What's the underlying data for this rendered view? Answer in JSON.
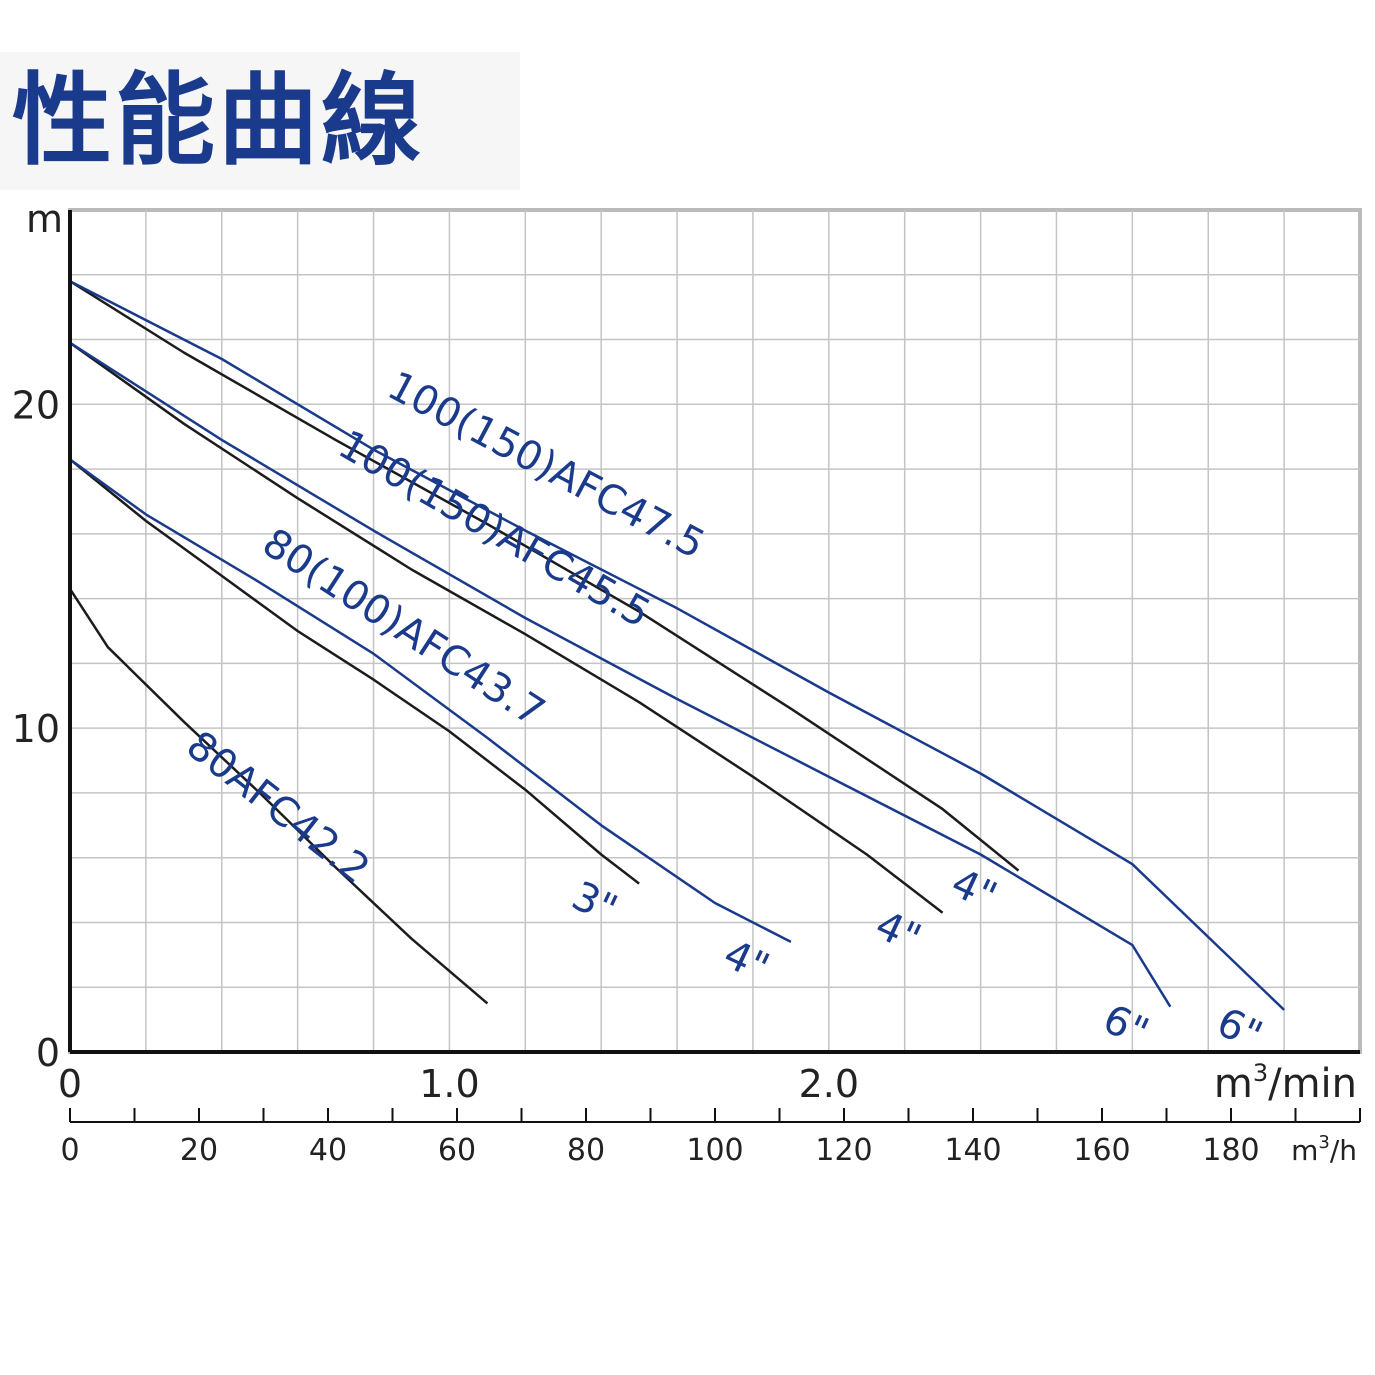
{
  "title": "性能曲線",
  "chart_data": {
    "type": "line",
    "y_axis": {
      "label": "m",
      "ticks": [
        "0",
        "10",
        "20"
      ],
      "range": [
        0,
        26
      ]
    },
    "x_axis_primary": {
      "unit_base": "m",
      "unit_exp": "3",
      "unit_tail": "/min",
      "ticks": [
        "0",
        "1.0",
        "2.0"
      ],
      "range": [
        0,
        3.4
      ]
    },
    "x_axis_secondary": {
      "unit_base": "m",
      "unit_exp": "3",
      "unit_tail": "/h",
      "ticks": [
        "0",
        "20",
        "40",
        "60",
        "80",
        "100",
        "120",
        "140",
        "160",
        "180"
      ]
    },
    "grid": true,
    "series": [
      {
        "name": "80AFC42.2",
        "black": {
          "x": [
            0,
            0.1,
            0.3,
            0.5,
            0.7,
            0.9,
            1.1
          ],
          "y": [
            14.3,
            12.5,
            10.2,
            8.0,
            5.7,
            3.5,
            1.5
          ],
          "end_label": ""
        },
        "blue": null
      },
      {
        "name": "80(100)AFC43.7",
        "black": {
          "x": [
            0,
            0.2,
            0.4,
            0.6,
            0.8,
            1.0,
            1.2,
            1.4,
            1.5
          ],
          "y": [
            18.3,
            16.4,
            14.7,
            13.0,
            11.5,
            9.9,
            8.1,
            6.1,
            5.2
          ],
          "end_label": "3\""
        },
        "blue": {
          "x": [
            0,
            0.2,
            0.5,
            0.8,
            1.1,
            1.4,
            1.7,
            1.9
          ],
          "y": [
            18.3,
            16.6,
            14.5,
            12.3,
            9.7,
            7.0,
            4.6,
            3.4
          ],
          "end_label": "4\""
        }
      },
      {
        "name": "100(150)AFC45.5",
        "black": {
          "x": [
            0,
            0.3,
            0.6,
            0.9,
            1.2,
            1.5,
            1.8,
            2.1,
            2.3
          ],
          "y": [
            21.9,
            19.4,
            17.1,
            14.9,
            12.9,
            10.8,
            8.5,
            6.1,
            4.3
          ],
          "end_label": "4\""
        },
        "blue": {
          "x": [
            0,
            0.4,
            0.8,
            1.2,
            1.6,
            2.0,
            2.4,
            2.8,
            2.9
          ],
          "y": [
            21.9,
            18.9,
            16.1,
            13.4,
            10.9,
            8.5,
            6.1,
            3.3,
            1.4
          ],
          "end_label": "6\""
        }
      },
      {
        "name": "100(150)AFC47.5",
        "black": {
          "x": [
            0,
            0.3,
            0.7,
            1.1,
            1.5,
            1.9,
            2.3,
            2.5
          ],
          "y": [
            23.8,
            21.6,
            18.9,
            16.3,
            13.6,
            10.6,
            7.5,
            5.6
          ],
          "end_label": "4\""
        },
        "blue": {
          "x": [
            0,
            0.4,
            0.8,
            1.2,
            1.6,
            2.0,
            2.4,
            2.8,
            3.2
          ],
          "y": [
            23.8,
            21.4,
            18.6,
            16.1,
            13.7,
            11.1,
            8.6,
            5.8,
            1.3
          ],
          "end_label": "6\""
        }
      }
    ]
  }
}
